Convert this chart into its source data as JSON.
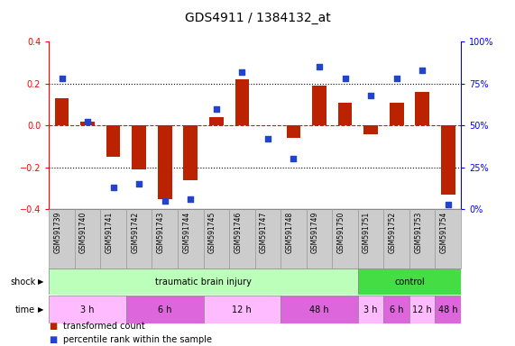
{
  "title": "GDS4911 / 1384132_at",
  "samples": [
    "GSM591739",
    "GSM591740",
    "GSM591741",
    "GSM591742",
    "GSM591743",
    "GSM591744",
    "GSM591745",
    "GSM591746",
    "GSM591747",
    "GSM591748",
    "GSM591749",
    "GSM591750",
    "GSM591751",
    "GSM591752",
    "GSM591753",
    "GSM591754"
  ],
  "bar_values": [
    0.13,
    0.02,
    -0.15,
    -0.21,
    -0.35,
    -0.26,
    0.04,
    0.22,
    0.0,
    -0.06,
    0.19,
    0.11,
    -0.04,
    0.11,
    0.16,
    -0.33
  ],
  "scatter_values": [
    78,
    52,
    13,
    15,
    5,
    6,
    60,
    82,
    42,
    30,
    85,
    78,
    68,
    78,
    83,
    3
  ],
  "bar_color": "#bb2200",
  "scatter_color": "#2244cc",
  "ylim_left": [
    -0.4,
    0.4
  ],
  "ylim_right": [
    0,
    100
  ],
  "yticks_left": [
    -0.4,
    -0.2,
    0.0,
    0.2,
    0.4
  ],
  "yticks_right": [
    0,
    25,
    50,
    75,
    100
  ],
  "ytick_labels_right": [
    "0%",
    "25%",
    "50%",
    "75%",
    "100%"
  ],
  "shock_groups": [
    {
      "label": "traumatic brain injury",
      "start": 0,
      "end": 11,
      "color": "#bbffbb"
    },
    {
      "label": "control",
      "start": 12,
      "end": 15,
      "color": "#44dd44"
    }
  ],
  "time_groups": [
    {
      "label": "3 h",
      "start": 0,
      "end": 2,
      "color": "#ffbbff"
    },
    {
      "label": "6 h",
      "start": 3,
      "end": 5,
      "color": "#dd66dd"
    },
    {
      "label": "12 h",
      "start": 6,
      "end": 8,
      "color": "#ffbbff"
    },
    {
      "label": "48 h",
      "start": 9,
      "end": 11,
      "color": "#dd66dd"
    },
    {
      "label": "3 h",
      "start": 12,
      "end": 12,
      "color": "#ffbbff"
    },
    {
      "label": "6 h",
      "start": 13,
      "end": 13,
      "color": "#dd66dd"
    },
    {
      "label": "12 h",
      "start": 14,
      "end": 14,
      "color": "#ffbbff"
    },
    {
      "label": "48 h",
      "start": 15,
      "end": 15,
      "color": "#dd66dd"
    }
  ],
  "legend_items": [
    {
      "label": "transformed count",
      "color": "#bb2200"
    },
    {
      "label": "percentile rank within the sample",
      "color": "#2244cc"
    }
  ],
  "background_color": "#ffffff",
  "bar_width": 0.55,
  "sample_box_color": "#cccccc",
  "title_fontsize": 10,
  "axis_fontsize": 7,
  "label_fontsize": 7,
  "sample_fontsize": 5.5,
  "row_fontsize": 7
}
